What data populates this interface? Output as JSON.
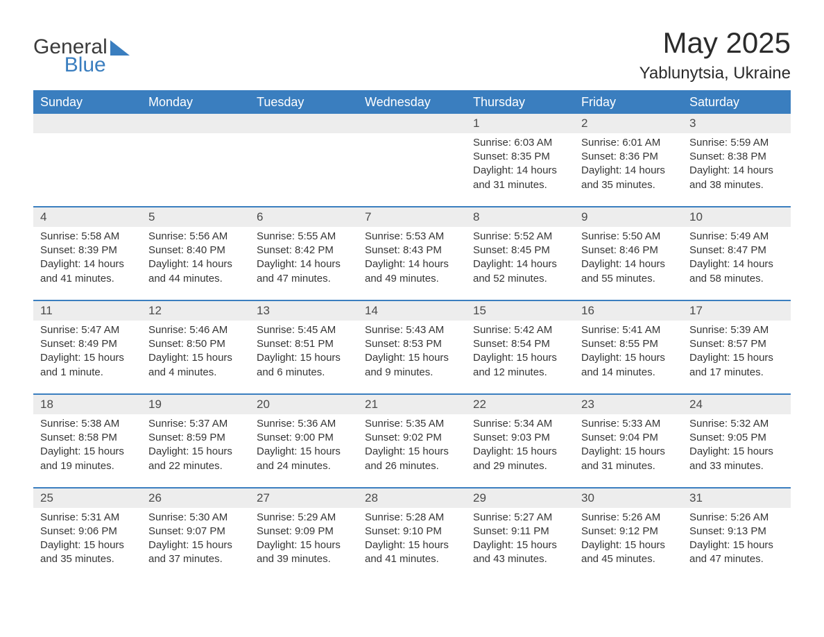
{
  "meta": {
    "title": "May 2025",
    "location": "Yablunytsia, Ukraine",
    "logo_text1": "General",
    "logo_text2": "Blue"
  },
  "style": {
    "header_bg": "#3a7ebf",
    "header_fg": "#ffffff",
    "daynum_bg": "#ededed",
    "week_border": "#3a7ebf",
    "text_color": "#353535",
    "title_color": "#2b2b2b",
    "logo_gray": "#3b3b3b",
    "logo_blue": "#3a7ebf",
    "page_bg": "#ffffff",
    "title_fontsize": 42,
    "location_fontsize": 24,
    "header_fontsize": 18,
    "body_fontsize": 15,
    "daynum_fontsize": 17
  },
  "weekdays": [
    "Sunday",
    "Monday",
    "Tuesday",
    "Wednesday",
    "Thursday",
    "Friday",
    "Saturday"
  ],
  "weeks": [
    [
      {
        "n": "",
        "sr": "",
        "ss": "",
        "dl": ""
      },
      {
        "n": "",
        "sr": "",
        "ss": "",
        "dl": ""
      },
      {
        "n": "",
        "sr": "",
        "ss": "",
        "dl": ""
      },
      {
        "n": "",
        "sr": "",
        "ss": "",
        "dl": ""
      },
      {
        "n": "1",
        "sr": "Sunrise: 6:03 AM",
        "ss": "Sunset: 8:35 PM",
        "dl": "Daylight: 14 hours and 31 minutes."
      },
      {
        "n": "2",
        "sr": "Sunrise: 6:01 AM",
        "ss": "Sunset: 8:36 PM",
        "dl": "Daylight: 14 hours and 35 minutes."
      },
      {
        "n": "3",
        "sr": "Sunrise: 5:59 AM",
        "ss": "Sunset: 8:38 PM",
        "dl": "Daylight: 14 hours and 38 minutes."
      }
    ],
    [
      {
        "n": "4",
        "sr": "Sunrise: 5:58 AM",
        "ss": "Sunset: 8:39 PM",
        "dl": "Daylight: 14 hours and 41 minutes."
      },
      {
        "n": "5",
        "sr": "Sunrise: 5:56 AM",
        "ss": "Sunset: 8:40 PM",
        "dl": "Daylight: 14 hours and 44 minutes."
      },
      {
        "n": "6",
        "sr": "Sunrise: 5:55 AM",
        "ss": "Sunset: 8:42 PM",
        "dl": "Daylight: 14 hours and 47 minutes."
      },
      {
        "n": "7",
        "sr": "Sunrise: 5:53 AM",
        "ss": "Sunset: 8:43 PM",
        "dl": "Daylight: 14 hours and 49 minutes."
      },
      {
        "n": "8",
        "sr": "Sunrise: 5:52 AM",
        "ss": "Sunset: 8:45 PM",
        "dl": "Daylight: 14 hours and 52 minutes."
      },
      {
        "n": "9",
        "sr": "Sunrise: 5:50 AM",
        "ss": "Sunset: 8:46 PM",
        "dl": "Daylight: 14 hours and 55 minutes."
      },
      {
        "n": "10",
        "sr": "Sunrise: 5:49 AM",
        "ss": "Sunset: 8:47 PM",
        "dl": "Daylight: 14 hours and 58 minutes."
      }
    ],
    [
      {
        "n": "11",
        "sr": "Sunrise: 5:47 AM",
        "ss": "Sunset: 8:49 PM",
        "dl": "Daylight: 15 hours and 1 minute."
      },
      {
        "n": "12",
        "sr": "Sunrise: 5:46 AM",
        "ss": "Sunset: 8:50 PM",
        "dl": "Daylight: 15 hours and 4 minutes."
      },
      {
        "n": "13",
        "sr": "Sunrise: 5:45 AM",
        "ss": "Sunset: 8:51 PM",
        "dl": "Daylight: 15 hours and 6 minutes."
      },
      {
        "n": "14",
        "sr": "Sunrise: 5:43 AM",
        "ss": "Sunset: 8:53 PM",
        "dl": "Daylight: 15 hours and 9 minutes."
      },
      {
        "n": "15",
        "sr": "Sunrise: 5:42 AM",
        "ss": "Sunset: 8:54 PM",
        "dl": "Daylight: 15 hours and 12 minutes."
      },
      {
        "n": "16",
        "sr": "Sunrise: 5:41 AM",
        "ss": "Sunset: 8:55 PM",
        "dl": "Daylight: 15 hours and 14 minutes."
      },
      {
        "n": "17",
        "sr": "Sunrise: 5:39 AM",
        "ss": "Sunset: 8:57 PM",
        "dl": "Daylight: 15 hours and 17 minutes."
      }
    ],
    [
      {
        "n": "18",
        "sr": "Sunrise: 5:38 AM",
        "ss": "Sunset: 8:58 PM",
        "dl": "Daylight: 15 hours and 19 minutes."
      },
      {
        "n": "19",
        "sr": "Sunrise: 5:37 AM",
        "ss": "Sunset: 8:59 PM",
        "dl": "Daylight: 15 hours and 22 minutes."
      },
      {
        "n": "20",
        "sr": "Sunrise: 5:36 AM",
        "ss": "Sunset: 9:00 PM",
        "dl": "Daylight: 15 hours and 24 minutes."
      },
      {
        "n": "21",
        "sr": "Sunrise: 5:35 AM",
        "ss": "Sunset: 9:02 PM",
        "dl": "Daylight: 15 hours and 26 minutes."
      },
      {
        "n": "22",
        "sr": "Sunrise: 5:34 AM",
        "ss": "Sunset: 9:03 PM",
        "dl": "Daylight: 15 hours and 29 minutes."
      },
      {
        "n": "23",
        "sr": "Sunrise: 5:33 AM",
        "ss": "Sunset: 9:04 PM",
        "dl": "Daylight: 15 hours and 31 minutes."
      },
      {
        "n": "24",
        "sr": "Sunrise: 5:32 AM",
        "ss": "Sunset: 9:05 PM",
        "dl": "Daylight: 15 hours and 33 minutes."
      }
    ],
    [
      {
        "n": "25",
        "sr": "Sunrise: 5:31 AM",
        "ss": "Sunset: 9:06 PM",
        "dl": "Daylight: 15 hours and 35 minutes."
      },
      {
        "n": "26",
        "sr": "Sunrise: 5:30 AM",
        "ss": "Sunset: 9:07 PM",
        "dl": "Daylight: 15 hours and 37 minutes."
      },
      {
        "n": "27",
        "sr": "Sunrise: 5:29 AM",
        "ss": "Sunset: 9:09 PM",
        "dl": "Daylight: 15 hours and 39 minutes."
      },
      {
        "n": "28",
        "sr": "Sunrise: 5:28 AM",
        "ss": "Sunset: 9:10 PM",
        "dl": "Daylight: 15 hours and 41 minutes."
      },
      {
        "n": "29",
        "sr": "Sunrise: 5:27 AM",
        "ss": "Sunset: 9:11 PM",
        "dl": "Daylight: 15 hours and 43 minutes."
      },
      {
        "n": "30",
        "sr": "Sunrise: 5:26 AM",
        "ss": "Sunset: 9:12 PM",
        "dl": "Daylight: 15 hours and 45 minutes."
      },
      {
        "n": "31",
        "sr": "Sunrise: 5:26 AM",
        "ss": "Sunset: 9:13 PM",
        "dl": "Daylight: 15 hours and 47 minutes."
      }
    ]
  ]
}
